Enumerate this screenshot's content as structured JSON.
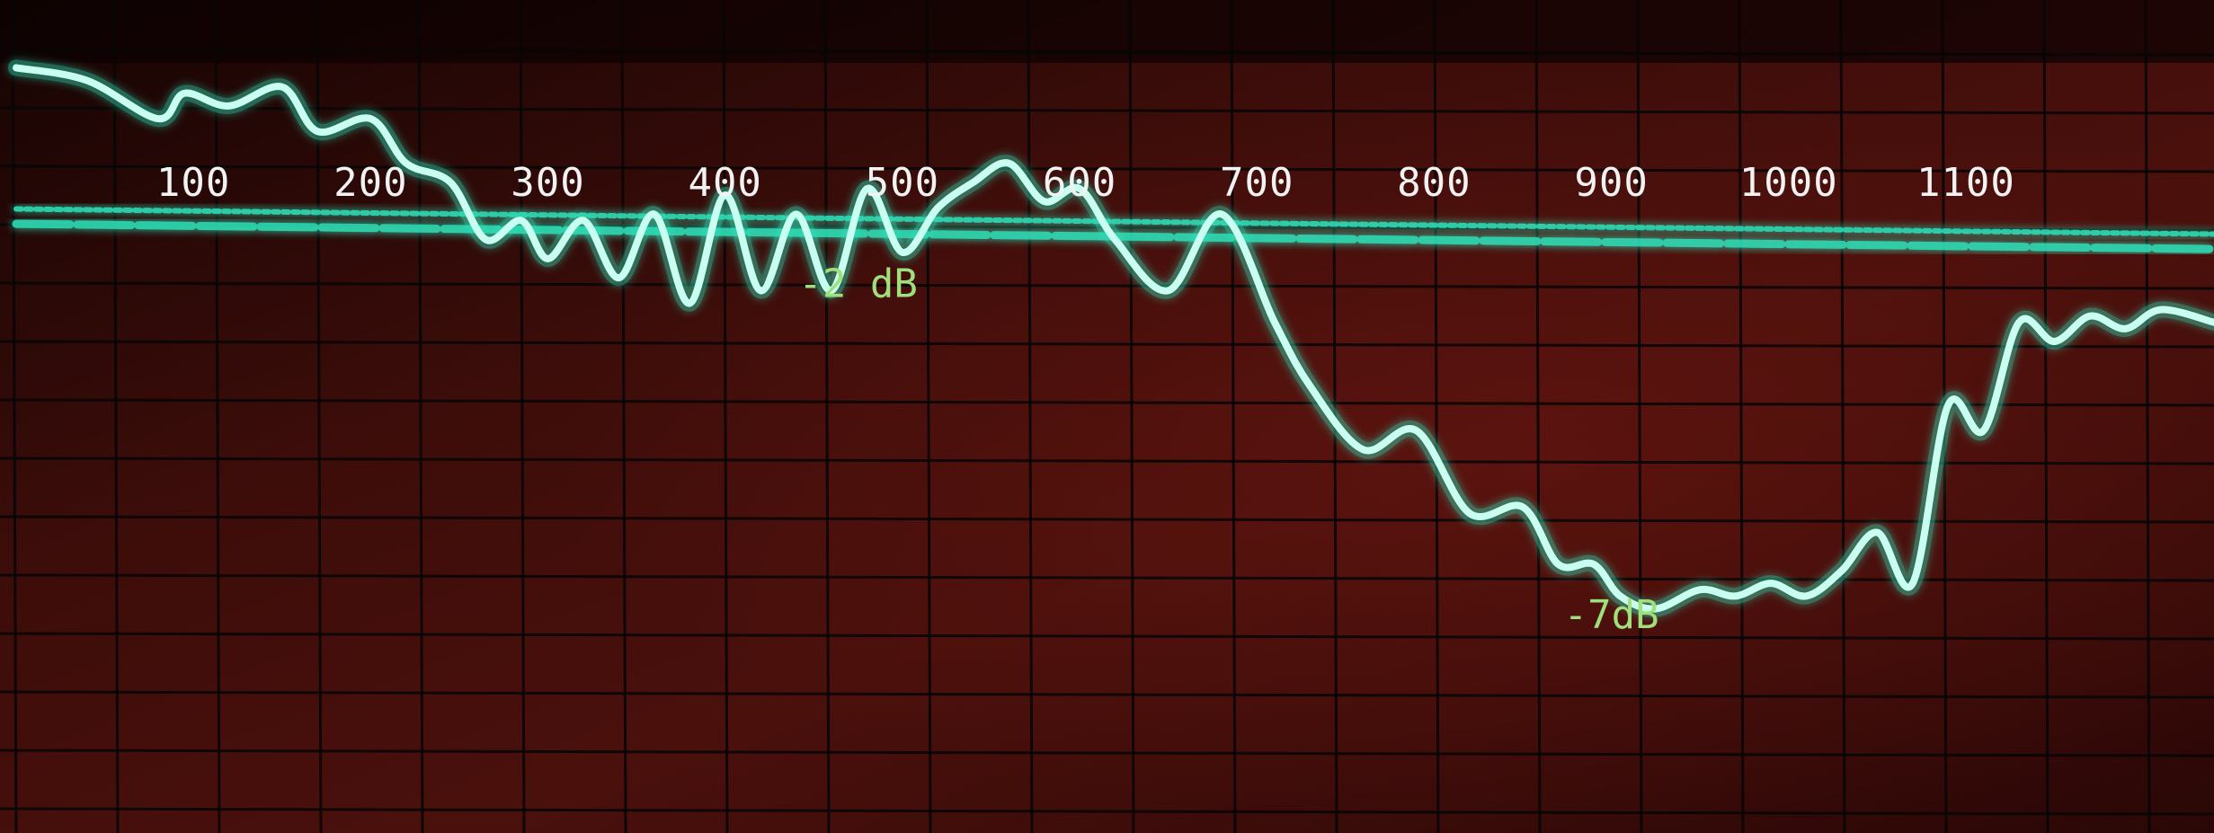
{
  "chart_data": {
    "type": "line",
    "title": "",
    "xlabel": "",
    "ylabel": "",
    "x_tick_labels": [
      "100",
      "200",
      "300",
      "400",
      "500",
      "600",
      "700",
      "800",
      "900",
      "1000",
      "1100"
    ],
    "xlim": [
      0,
      1240
    ],
    "ylim": [
      -10,
      2
    ],
    "grid": true,
    "colors": {
      "trace": "#c8fff0",
      "trace_glow": "#2fe0b8",
      "background": "#3a0b08",
      "grid": "#060606",
      "tick_text": "#f2f2f2",
      "annotation_text": "#9fe07a"
    },
    "series": [
      {
        "x": [
          0,
          40,
          80,
          95,
          120,
          150,
          170,
          200,
          220,
          245,
          265,
          285,
          300,
          320,
          340,
          360,
          380,
          400,
          420,
          440,
          460,
          480,
          500,
          520,
          540,
          560,
          580,
          600,
          620,
          650,
          680,
          710,
          730,
          760,
          790,
          820,
          850,
          870,
          890,
          905,
          925,
          950,
          970,
          990,
          1010,
          1030,
          1050,
          1070,
          1090,
          1110,
          1130,
          1150,
          1170,
          1190,
          1210,
          1240
        ],
        "y": [
          1.5,
          1.3,
          0.7,
          1.1,
          0.9,
          1.2,
          0.5,
          0.7,
          0.0,
          -0.3,
          -1.2,
          -0.9,
          -1.5,
          -0.9,
          -1.8,
          -0.8,
          -2.2,
          -0.5,
          -2.0,
          -0.8,
          -2.0,
          -0.4,
          -1.4,
          -0.7,
          -0.3,
          0.0,
          -0.6,
          -0.4,
          -1.2,
          -2.0,
          -0.8,
          -2.5,
          -3.5,
          -4.5,
          -4.2,
          -5.5,
          -5.4,
          -6.3,
          -6.3,
          -6.8,
          -7.0,
          -6.7,
          -6.8,
          -6.6,
          -6.8,
          -6.4,
          -5.8,
          -6.6,
          -3.8,
          -4.2,
          -2.5,
          -2.8,
          -2.4,
          -2.6,
          -2.3,
          -2.5
        ]
      }
    ],
    "reference_lines": [
      {
        "y": -1.0
      },
      {
        "y": -1.15
      }
    ],
    "annotations": [
      {
        "text": "-2 dB",
        "x": 475,
        "y": -2.1
      },
      {
        "text": "-7dB",
        "x": 900,
        "y": -7.3
      }
    ]
  }
}
